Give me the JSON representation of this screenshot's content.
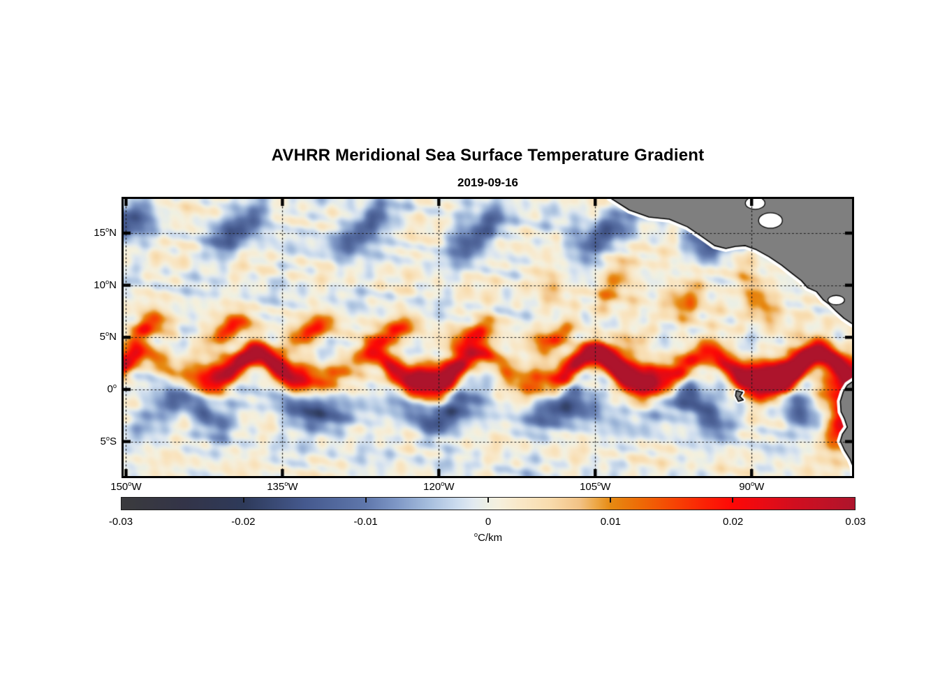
{
  "chart_data": {
    "type": "heatmap",
    "title": "AVHRR Meridional Sea Surface Temperature Gradient",
    "subtitle": "2019-09-16",
    "grid": "dotted",
    "x_axis": {
      "range_deg_lon": [
        -150.23,
        -80.37
      ],
      "ticks_deg": [
        -150,
        -135,
        -120,
        -105,
        -90
      ],
      "tick_labels": [
        "150°W",
        "135°W",
        "120°W",
        "105°W",
        "90°W"
      ]
    },
    "y_axis": {
      "range_deg_lat": [
        18.28,
        -8.31
      ],
      "ticks_deg": [
        15,
        10,
        5,
        0,
        -5
      ],
      "tick_labels": [
        "15°N",
        "10°N",
        "5°N",
        "0°",
        "5°S"
      ]
    },
    "colorbar": {
      "unit_label": "°C/km",
      "min": -0.03,
      "max": 0.03,
      "tick_values": [
        -0.03,
        -0.02,
        -0.01,
        0,
        0.01,
        0.02,
        0.03
      ],
      "tick_labels": [
        "-0.03",
        "-0.02",
        "-0.01",
        "0",
        "0.01",
        "0.02",
        "0.03"
      ],
      "orientation": "horizontal-below",
      "colormap": [
        [
          0.0,
          "#3b3b3d"
        ],
        [
          0.085,
          "#333448"
        ],
        [
          0.167,
          "#2e3a5a"
        ],
        [
          0.25,
          "#45598e"
        ],
        [
          0.333,
          "#5f77ab"
        ],
        [
          0.375,
          "#7e97c6"
        ],
        [
          0.417,
          "#a4bcdc"
        ],
        [
          0.458,
          "#ccdcee"
        ],
        [
          0.48,
          "#e2eaf0"
        ],
        [
          0.5,
          "#eef0e4"
        ],
        [
          0.515,
          "#f6f0dd"
        ],
        [
          0.542,
          "#f9e8c8"
        ],
        [
          0.583,
          "#f8dcae"
        ],
        [
          0.625,
          "#f2c285"
        ],
        [
          0.646,
          "#eda949"
        ],
        [
          0.667,
          "#e68a12"
        ],
        [
          0.708,
          "#ee6a06"
        ],
        [
          0.75,
          "#f64704"
        ],
        [
          0.792,
          "#fb2405"
        ],
        [
          0.833,
          "#fd0806"
        ],
        [
          0.875,
          "#e90b14"
        ],
        [
          0.917,
          "#d10e1f"
        ],
        [
          0.958,
          "#c11226"
        ],
        [
          1.0,
          "#ad142c"
        ]
      ]
    },
    "field_model": {
      "value_range": [
        -0.03,
        0.03
      ],
      "background": {
        "amp": 0.0048,
        "anisotropy": [
          0.85,
          1.35
        ]
      },
      "bands": [
        {
          "id": "equatorial-front",
          "amp": 0.031,
          "lat_base": 0.8,
          "cusp_height": 2.7,
          "wavelength_deg": 10.8,
          "phase_deg": 151,
          "sharpness": 1.7,
          "width_deg": 0.95,
          "amp_mod": [
            0.37,
            2.2
          ],
          "east_boost": {
            "lon": -103,
            "scale": 3,
            "gain": 0.5
          }
        },
        {
          "id": "necc-front",
          "amp": 0.017,
          "lat_base": 5.4,
          "wave_amp": 0.9,
          "wavelength_deg": 8.2,
          "phase_deg": 149,
          "width_deg": 0.8,
          "fade_east_lon": -112
        },
        {
          "id": "south-equatorial-blue",
          "amp": -0.0145,
          "lat_base": -2.0,
          "wave_amp": 0.9,
          "wavelength_deg": 9.5,
          "phase_deg": 147,
          "width_deg": 1.15,
          "amp_mod": [
            0.52,
            1.0
          ]
        },
        {
          "id": "north-blue-patches",
          "amp": -0.0125,
          "lat_base": 15.2,
          "wave_amp": 1.4,
          "wavelength_deg": 12.0,
          "phase_deg": 150,
          "width_deg": 1.25,
          "amp_mod": [
            0.55,
            2.6
          ]
        },
        {
          "id": "east-orange-patches",
          "amp": 0.0115,
          "lat_base": 9.7,
          "wave_amp": 1.4,
          "wavelength_deg": 9.0,
          "phase_deg": 104,
          "width_deg": 1.5,
          "west_fade_lon": -110
        },
        {
          "id": "peru-coastal-front",
          "amp": 0.03,
          "center_lon": -81.3,
          "center_lat": -2.0,
          "sigma_lon": 1.6,
          "sigma_lat": 2.6
        }
      ]
    },
    "land": {
      "fill": "#7f7f7f",
      "outline": "#000000",
      "coastal_mask": "#ffffff",
      "polygons": {
        "central_america": [
          [
            -103.59,
            18.4
          ],
          [
            -101.72,
            17.21
          ],
          [
            -99.84,
            16.54
          ],
          [
            -97.9,
            16.34
          ],
          [
            -96.16,
            15.61
          ],
          [
            -94.68,
            14.6
          ],
          [
            -93.55,
            13.8
          ],
          [
            -92.47,
            13.53
          ],
          [
            -91.54,
            13.73
          ],
          [
            -90.6,
            13.8
          ],
          [
            -89.53,
            13.4
          ],
          [
            -88.32,
            12.73
          ],
          [
            -87.12,
            11.92
          ],
          [
            -86.11,
            11.12
          ],
          [
            -85.24,
            10.45
          ],
          [
            -84.64,
            9.78
          ],
          [
            -83.77,
            9.38
          ],
          [
            -83.1,
            8.57
          ],
          [
            -82.56,
            8.17
          ],
          [
            -81.89,
            7.5
          ],
          [
            -81.15,
            6.83
          ],
          [
            -80.55,
            6.43
          ],
          [
            -79.8,
            5.95
          ],
          [
            -79.6,
            18.4
          ]
        ],
        "south_america": [
          [
            -79.7,
            1.1
          ],
          [
            -80.15,
            0.87
          ],
          [
            -80.82,
            0.4
          ],
          [
            -81.22,
            -0.27
          ],
          [
            -81.49,
            -1.14
          ],
          [
            -81.42,
            -2.14
          ],
          [
            -81.09,
            -2.81
          ],
          [
            -80.82,
            -3.62
          ],
          [
            -81.29,
            -4.29
          ],
          [
            -81.49,
            -4.96
          ],
          [
            -81.09,
            -5.83
          ],
          [
            -80.55,
            -6.7
          ],
          [
            -80.28,
            -7.37
          ],
          [
            -80.15,
            -8.44
          ],
          [
            -79.7,
            -8.6
          ]
        ],
        "galapagos": [
          [
            -91.47,
            -0.13
          ],
          [
            -90.87,
            -0.27
          ],
          [
            -91.14,
            -0.67
          ],
          [
            -90.8,
            -1.0
          ],
          [
            -91.27,
            -1.14
          ],
          [
            -91.54,
            -0.6
          ]
        ]
      },
      "bays": [
        {
          "id": "campeche-bay",
          "lon": -89.66,
          "lat": 17.88,
          "rx": 0.94,
          "ry": 0.6
        },
        {
          "id": "honduras-gulf",
          "lon": -88.19,
          "lat": 16.21,
          "rx": 1.14,
          "ry": 0.74
        },
        {
          "id": "nicaragua-lake",
          "lon": -81.89,
          "lat": 8.57,
          "rx": 0.8,
          "ry": 0.45
        }
      ]
    }
  }
}
